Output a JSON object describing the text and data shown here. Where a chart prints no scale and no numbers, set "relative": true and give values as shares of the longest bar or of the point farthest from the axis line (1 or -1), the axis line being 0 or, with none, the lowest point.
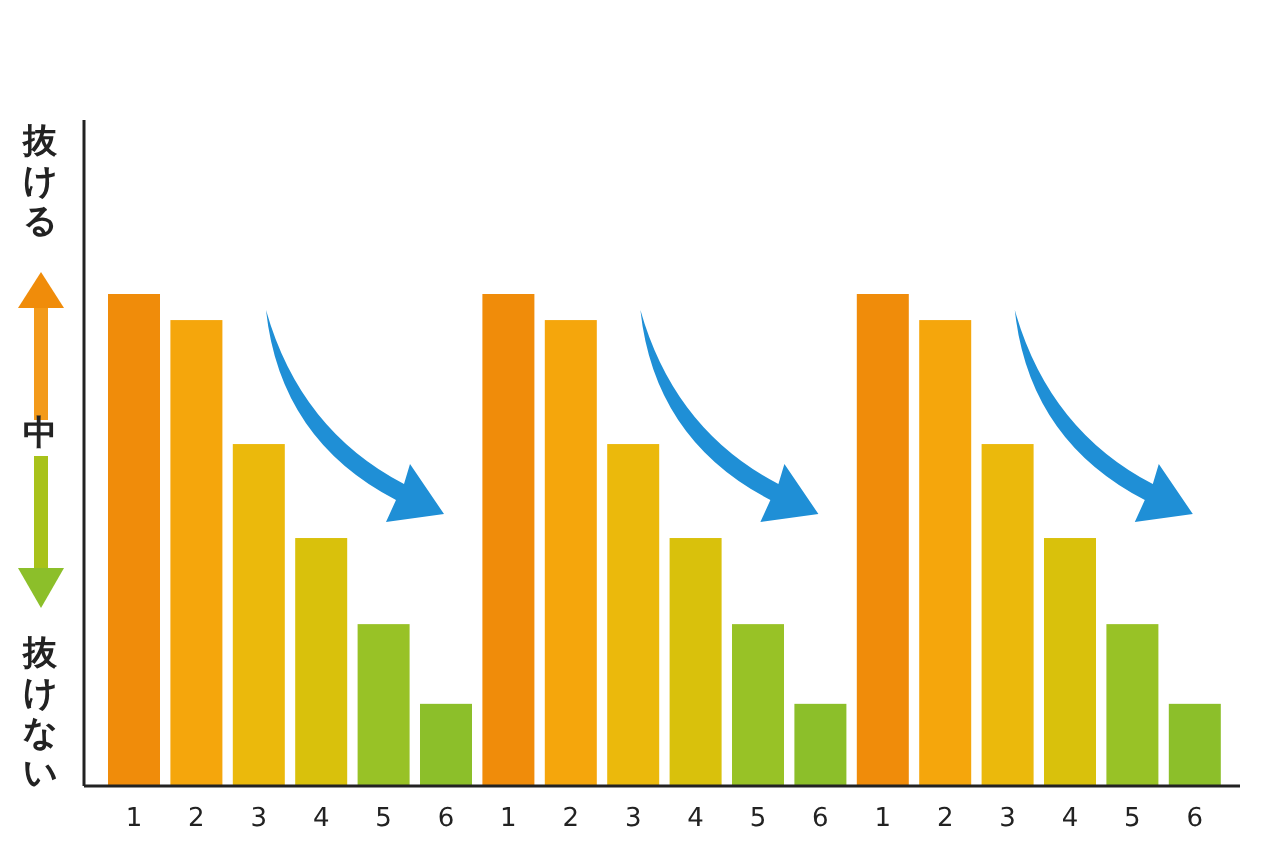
{
  "chart_data": {
    "type": "bar",
    "relative": true,
    "categories": [
      "1",
      "2",
      "3",
      "4",
      "5",
      "6",
      "1",
      "2",
      "3",
      "4",
      "5",
      "6",
      "1",
      "2",
      "3",
      "4",
      "5",
      "6"
    ],
    "values": [
      1,
      0.947,
      0.695,
      0.504,
      0.329,
      0.167,
      1,
      0.947,
      0.695,
      0.504,
      0.329,
      0.167,
      1,
      0.947,
      0.695,
      0.504,
      0.329,
      0.167
    ],
    "colors": [
      "#f08c0a",
      "#f5a60c",
      "#ebb90c",
      "#d9c10c",
      "#98c226",
      "#8cbf2a",
      "#f08c0a",
      "#f5a60c",
      "#ebb90c",
      "#d9c10c",
      "#98c226",
      "#8cbf2a",
      "#f08c0a",
      "#f5a60c",
      "#ebb90c",
      "#d9c10c",
      "#98c226",
      "#8cbf2a"
    ],
    "annotations": [
      "抜ける",
      "中",
      "抜けない"
    ]
  }
}
